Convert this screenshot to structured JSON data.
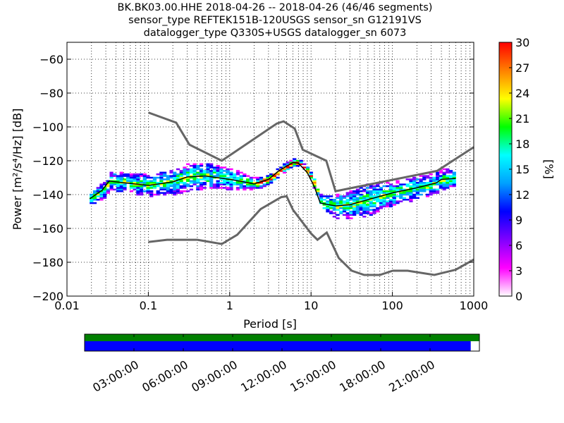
{
  "title": {
    "line1": "BK.BK03.00.HHE   2018-04-26 -- 2018-04-26  (46/46 segments)",
    "line2": "sensor_type REFTEK151B-120USGS sensor_sn G12191VS",
    "line3": "datalogger_type Q330S+USGS datalogger_sn 6073"
  },
  "chart_data": {
    "type": "heatmap",
    "xlabel": "Period [s]",
    "ylabel": "Power [m²/s⁴/Hz] [dB]",
    "xscale": "log",
    "xlim": [
      0.01,
      1000
    ],
    "ylim": [
      -200,
      -50
    ],
    "xticks": [
      {
        "v": 0.01,
        "l": "0.01"
      },
      {
        "v": 0.1,
        "l": "0.1"
      },
      {
        "v": 1,
        "l": "1"
      },
      {
        "v": 10,
        "l": "10"
      },
      {
        "v": 100,
        "l": "100"
      },
      {
        "v": 1000,
        "l": "1000"
      }
    ],
    "yticks": [
      {
        "v": -60,
        "l": "−60"
      },
      {
        "v": -80,
        "l": "−80"
      },
      {
        "v": -100,
        "l": "−100"
      },
      {
        "v": -120,
        "l": "−120"
      },
      {
        "v": -140,
        "l": "−140"
      },
      {
        "v": -160,
        "l": "−160"
      },
      {
        "v": -180,
        "l": "−180"
      },
      {
        "v": -200,
        "l": "−200"
      }
    ],
    "grid": true,
    "mean_curve": [
      [
        0.019,
        -142.5
      ],
      [
        0.027,
        -137.5
      ],
      [
        0.033,
        -132
      ],
      [
        0.05,
        -133
      ],
      [
        0.1,
        -134.6
      ],
      [
        0.2,
        -132.5
      ],
      [
        0.3,
        -129.6
      ],
      [
        0.5,
        -129
      ],
      [
        1.0,
        -131
      ],
      [
        1.5,
        -132.5
      ],
      [
        2,
        -133.7
      ],
      [
        3,
        -131
      ],
      [
        4,
        -126
      ],
      [
        6,
        -121
      ],
      [
        7,
        -121.5
      ],
      [
        9,
        -127
      ],
      [
        11,
        -135.5
      ],
      [
        13,
        -145
      ],
      [
        20,
        -146.7
      ],
      [
        30,
        -146
      ],
      [
        50,
        -143
      ],
      [
        100,
        -139
      ],
      [
        200,
        -136
      ],
      [
        350,
        -133
      ],
      [
        400,
        -131
      ],
      [
        600,
        -130.5
      ]
    ],
    "spread_db": [
      [
        0.019,
        4
      ],
      [
        0.03,
        5
      ],
      [
        0.1,
        6
      ],
      [
        0.3,
        8
      ],
      [
        1,
        6
      ],
      [
        2,
        3
      ],
      [
        5,
        2
      ],
      [
        9,
        2
      ],
      [
        13,
        4
      ],
      [
        20,
        7
      ],
      [
        50,
        9
      ],
      [
        100,
        7
      ],
      [
        300,
        6
      ],
      [
        600,
        5
      ]
    ],
    "nhnm": [
      [
        0.1,
        -91.5
      ],
      [
        0.22,
        -97.5
      ],
      [
        0.32,
        -110.5
      ],
      [
        0.8,
        -120
      ],
      [
        3.8,
        -98
      ],
      [
        4.6,
        -96.7
      ],
      [
        6.3,
        -101
      ],
      [
        7.9,
        -113.5
      ],
      [
        15.4,
        -120
      ],
      [
        20,
        -138
      ],
      [
        354,
        -126
      ],
      [
        1000,
        -112
      ]
    ],
    "nlnm": [
      [
        0.1,
        -168
      ],
      [
        0.17,
        -166.7
      ],
      [
        0.4,
        -166.7
      ],
      [
        0.8,
        -169.2
      ],
      [
        1.24,
        -163.7
      ],
      [
        2.4,
        -148.6
      ],
      [
        4.3,
        -141.5
      ],
      [
        5,
        -141
      ],
      [
        6,
        -149
      ],
      [
        10,
        -163
      ],
      [
        12,
        -166.7
      ],
      [
        15.6,
        -162.4
      ],
      [
        21.9,
        -177.5
      ],
      [
        31.6,
        -185
      ],
      [
        45,
        -187.5
      ],
      [
        70,
        -187.5
      ],
      [
        101,
        -185
      ],
      [
        154,
        -185
      ],
      [
        328,
        -187.5
      ],
      [
        600,
        -184.4
      ],
      [
        1000,
        -178.4
      ]
    ],
    "colorbar": {
      "label": "[%]",
      "range": [
        0,
        30
      ],
      "ticks": [
        "0",
        "3",
        "6",
        "9",
        "12",
        "15",
        "18",
        "21",
        "24",
        "27",
        "30"
      ],
      "colors": [
        "#ffffff",
        "#ff00ff",
        "#8000ff",
        "#0000ff",
        "#00a0ff",
        "#00ffff",
        "#00ff00",
        "#ffff00",
        "#ff8000",
        "#ff0000"
      ]
    },
    "timeline": {
      "ticks": [
        "03:00:00",
        "06:00:00",
        "09:00:00",
        "12:00:00",
        "15:00:00",
        "18:00:00",
        "21:00:00"
      ],
      "coverage_fraction": 0.978,
      "colors": {
        "top": "#008000",
        "bottom": "#0000ff"
      }
    }
  }
}
